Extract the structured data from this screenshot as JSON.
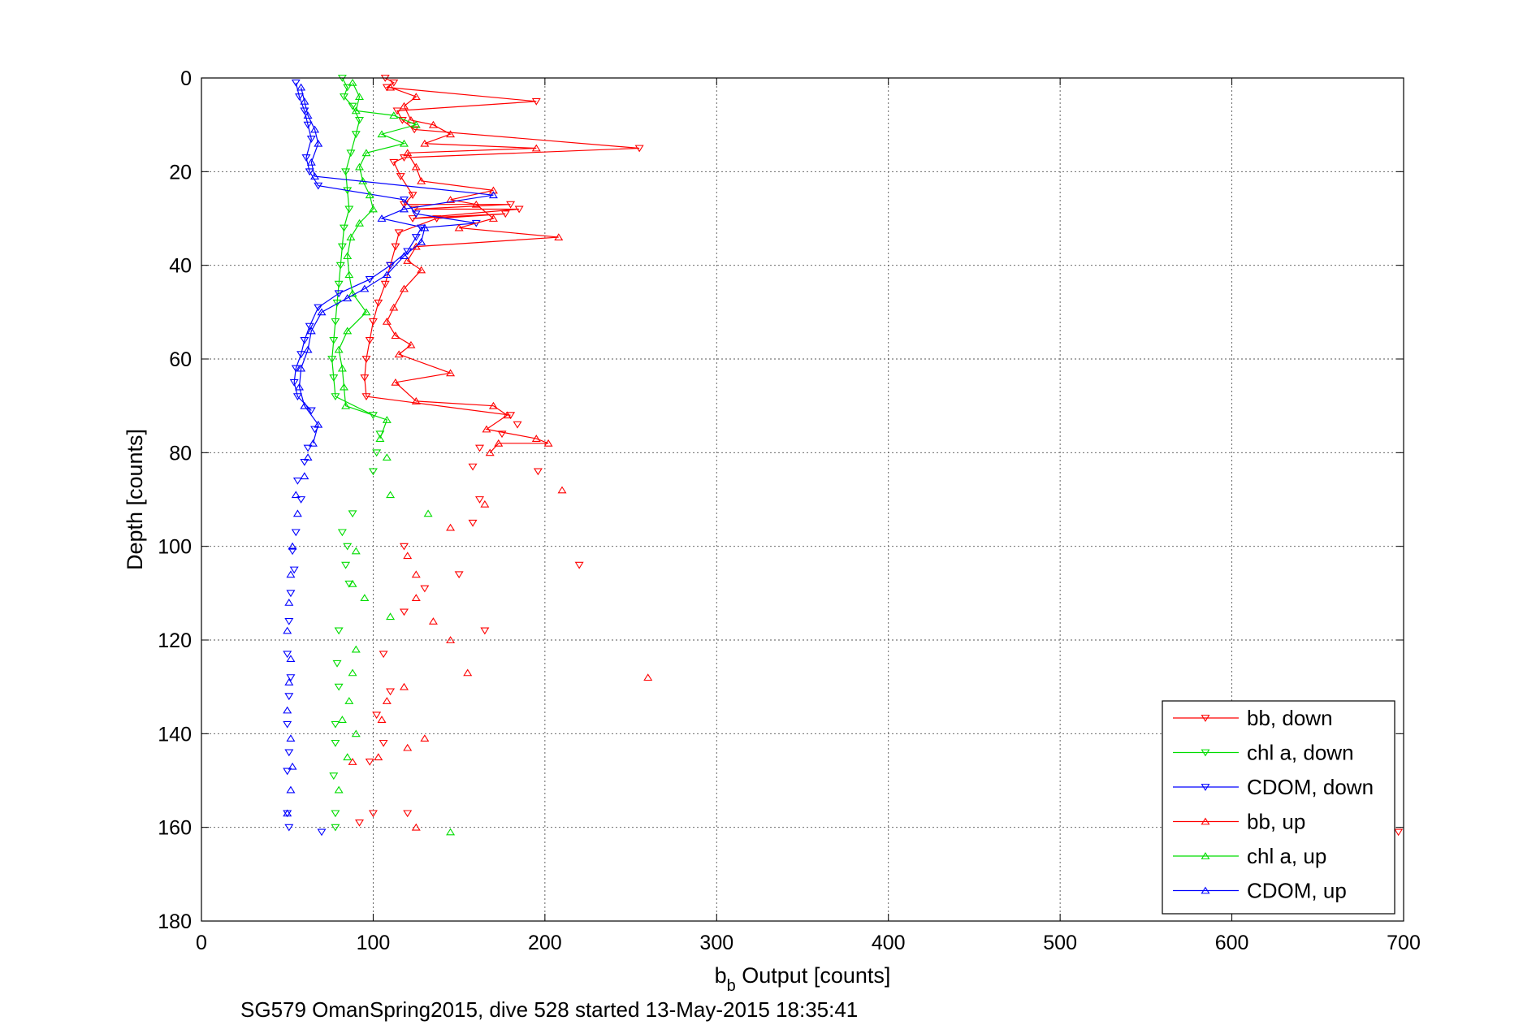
{
  "chart_data": {
    "type": "scatter",
    "xlabel": {
      "base": "b",
      "sub": "b",
      "rest": " Output [counts]"
    },
    "ylabel": "Depth [counts]",
    "caption": "SG579 OmanSpring2015, dive 528 started 13-May-2015 18:35:41",
    "xlim": [
      0,
      700
    ],
    "ylim": [
      0,
      180
    ],
    "y_reversed": true,
    "grid": true,
    "xticks": [
      "0",
      "100",
      "200",
      "300",
      "400",
      "500",
      "600",
      "700"
    ],
    "yticks": [
      "0",
      "20",
      "40",
      "60",
      "80",
      "100",
      "120",
      "140",
      "160",
      "180"
    ],
    "legend_position": "bottom-right",
    "series": [
      {
        "name": "bb, down",
        "color": "#ff0000",
        "marker": "triangle-down",
        "points": [
          [
            107,
            0
          ],
          [
            112,
            1
          ],
          [
            108,
            2
          ],
          [
            195,
            5
          ],
          [
            114,
            7
          ],
          [
            117,
            9
          ],
          [
            124,
            11
          ],
          [
            255,
            15
          ],
          [
            118,
            17
          ],
          [
            112,
            18
          ],
          [
            116,
            21
          ],
          [
            123,
            25
          ],
          [
            118,
            27
          ],
          [
            180,
            27
          ],
          [
            124,
            28
          ],
          [
            185,
            28
          ],
          [
            123,
            30
          ],
          [
            177,
            29
          ],
          [
            137,
            30
          ],
          [
            115,
            33
          ],
          [
            113,
            36
          ],
          [
            110,
            40
          ],
          [
            107,
            44
          ],
          [
            103,
            48
          ],
          [
            100,
            52
          ],
          [
            98,
            56
          ],
          [
            96,
            60
          ],
          [
            95,
            64
          ],
          [
            96,
            68
          ],
          [
            180,
            72
          ],
          [
            184,
            74
          ],
          [
            175,
            76
          ],
          [
            162,
            79
          ],
          [
            158,
            83
          ],
          [
            196,
            84
          ],
          [
            162,
            90
          ],
          [
            158,
            95
          ],
          [
            118,
            100
          ],
          [
            220,
            104
          ],
          [
            150,
            106
          ],
          [
            130,
            109
          ],
          [
            118,
            114
          ],
          [
            165,
            118
          ],
          [
            106,
            123
          ],
          [
            110,
            131
          ],
          [
            102,
            136
          ],
          [
            106,
            142
          ],
          [
            98,
            146
          ],
          [
            100,
            157
          ],
          [
            120,
            157
          ],
          [
            92,
            159
          ],
          [
            697,
            161
          ]
        ]
      },
      {
        "name": "chl a, down",
        "color": "#00dd00",
        "marker": "triangle-down",
        "points": [
          [
            82,
            0
          ],
          [
            85,
            2
          ],
          [
            83,
            4
          ],
          [
            88,
            6
          ],
          [
            92,
            9
          ],
          [
            90,
            12
          ],
          [
            87,
            16
          ],
          [
            84,
            20
          ],
          [
            85,
            24
          ],
          [
            86,
            28
          ],
          [
            83,
            32
          ],
          [
            82,
            36
          ],
          [
            81,
            40
          ],
          [
            80,
            44
          ],
          [
            79,
            48
          ],
          [
            78,
            52
          ],
          [
            77,
            56
          ],
          [
            76,
            60
          ],
          [
            77,
            64
          ],
          [
            78,
            68
          ],
          [
            100,
            72
          ],
          [
            104,
            76
          ],
          [
            102,
            80
          ],
          [
            100,
            84
          ],
          [
            88,
            93
          ],
          [
            82,
            97
          ],
          [
            85,
            100
          ],
          [
            84,
            104
          ],
          [
            86,
            108
          ],
          [
            80,
            118
          ],
          [
            79,
            125
          ],
          [
            80,
            130
          ],
          [
            78,
            138
          ],
          [
            78,
            142
          ],
          [
            77,
            149
          ],
          [
            78,
            157
          ],
          [
            78,
            160
          ]
        ]
      },
      {
        "name": "CDOM, down",
        "color": "#0000ff",
        "marker": "triangle-down",
        "points": [
          [
            55,
            1
          ],
          [
            57,
            4
          ],
          [
            60,
            7
          ],
          [
            62,
            10
          ],
          [
            64,
            13
          ],
          [
            61,
            17
          ],
          [
            63,
            20
          ],
          [
            68,
            23
          ],
          [
            118,
            26
          ],
          [
            125,
            29
          ],
          [
            160,
            31
          ],
          [
            128,
            32
          ],
          [
            125,
            34
          ],
          [
            120,
            37
          ],
          [
            110,
            40
          ],
          [
            98,
            43
          ],
          [
            80,
            46
          ],
          [
            68,
            49
          ],
          [
            63,
            53
          ],
          [
            60,
            56
          ],
          [
            58,
            59
          ],
          [
            55,
            62
          ],
          [
            54,
            65
          ],
          [
            56,
            68
          ],
          [
            64,
            71
          ],
          [
            66,
            75
          ],
          [
            62,
            79
          ],
          [
            60,
            82
          ],
          [
            56,
            86
          ],
          [
            58,
            90
          ],
          [
            55,
            97
          ],
          [
            53,
            101
          ],
          [
            54,
            105
          ],
          [
            52,
            110
          ],
          [
            51,
            116
          ],
          [
            50,
            123
          ],
          [
            52,
            128
          ],
          [
            51,
            132
          ],
          [
            50,
            138
          ],
          [
            51,
            144
          ],
          [
            50,
            148
          ],
          [
            50,
            157
          ],
          [
            51,
            160
          ],
          [
            70,
            161
          ]
        ]
      },
      {
        "name": "bb, up",
        "color": "#ff0000",
        "marker": "triangle-up",
        "points": [
          [
            110,
            2
          ],
          [
            125,
            4
          ],
          [
            118,
            6
          ],
          [
            122,
            9
          ],
          [
            135,
            10
          ],
          [
            145,
            12
          ],
          [
            130,
            14
          ],
          [
            195,
            15
          ],
          [
            120,
            16
          ],
          [
            125,
            19
          ],
          [
            128,
            22
          ],
          [
            170,
            24
          ],
          [
            145,
            26
          ],
          [
            160,
            27
          ],
          [
            170,
            30
          ],
          [
            150,
            32
          ],
          [
            208,
            34
          ],
          [
            125,
            36
          ],
          [
            120,
            39
          ],
          [
            128,
            41
          ],
          [
            118,
            45
          ],
          [
            112,
            49
          ],
          [
            108,
            52
          ],
          [
            113,
            55
          ],
          [
            122,
            57
          ],
          [
            115,
            59
          ],
          [
            145,
            63
          ],
          [
            113,
            65
          ],
          [
            125,
            69
          ],
          [
            170,
            70
          ],
          [
            178,
            72
          ],
          [
            166,
            75
          ],
          [
            195,
            77
          ],
          [
            202,
            78
          ],
          [
            173,
            78
          ],
          [
            168,
            80
          ],
          [
            210,
            88
          ],
          [
            165,
            91
          ],
          [
            145,
            96
          ],
          [
            120,
            102
          ],
          [
            125,
            106
          ],
          [
            125,
            111
          ],
          [
            135,
            116
          ],
          [
            145,
            120
          ],
          [
            155,
            127
          ],
          [
            260,
            128
          ],
          [
            118,
            130
          ],
          [
            108,
            133
          ],
          [
            105,
            137
          ],
          [
            130,
            141
          ],
          [
            120,
            143
          ],
          [
            103,
            145
          ],
          [
            88,
            146
          ],
          [
            125,
            160
          ]
        ]
      },
      {
        "name": "chl a, up",
        "color": "#00dd00",
        "marker": "triangle-up",
        "points": [
          [
            88,
            1
          ],
          [
            92,
            4
          ],
          [
            90,
            7
          ],
          [
            112,
            8
          ],
          [
            125,
            10
          ],
          [
            105,
            12
          ],
          [
            118,
            14
          ],
          [
            96,
            16
          ],
          [
            92,
            19
          ],
          [
            94,
            22
          ],
          [
            98,
            25
          ],
          [
            100,
            28
          ],
          [
            92,
            31
          ],
          [
            87,
            34
          ],
          [
            85,
            38
          ],
          [
            86,
            42
          ],
          [
            88,
            46
          ],
          [
            96,
            50
          ],
          [
            85,
            54
          ],
          [
            80,
            58
          ],
          [
            82,
            62
          ],
          [
            83,
            66
          ],
          [
            84,
            70
          ],
          [
            108,
            73
          ],
          [
            104,
            77
          ],
          [
            108,
            81
          ],
          [
            110,
            89
          ],
          [
            132,
            93
          ],
          [
            90,
            101
          ],
          [
            88,
            108
          ],
          [
            95,
            111
          ],
          [
            110,
            115
          ],
          [
            90,
            122
          ],
          [
            88,
            127
          ],
          [
            86,
            133
          ],
          [
            82,
            137
          ],
          [
            90,
            140
          ],
          [
            85,
            145
          ],
          [
            80,
            152
          ],
          [
            145,
            161
          ]
        ]
      },
      {
        "name": "CDOM, up",
        "color": "#0000ff",
        "marker": "triangle-up",
        "points": [
          [
            58,
            2
          ],
          [
            60,
            5
          ],
          [
            62,
            8
          ],
          [
            66,
            11
          ],
          [
            68,
            14
          ],
          [
            64,
            18
          ],
          [
            66,
            21
          ],
          [
            170,
            25
          ],
          [
            118,
            28
          ],
          [
            105,
            30
          ],
          [
            130,
            32
          ],
          [
            128,
            35
          ],
          [
            118,
            38
          ],
          [
            108,
            42
          ],
          [
            95,
            45
          ],
          [
            85,
            47
          ],
          [
            70,
            50
          ],
          [
            64,
            54
          ],
          [
            62,
            58
          ],
          [
            58,
            62
          ],
          [
            57,
            66
          ],
          [
            60,
            70
          ],
          [
            68,
            74
          ],
          [
            65,
            78
          ],
          [
            62,
            81
          ],
          [
            60,
            85
          ],
          [
            55,
            89
          ],
          [
            56,
            93
          ],
          [
            53,
            100
          ],
          [
            52,
            106
          ],
          [
            51,
            112
          ],
          [
            50,
            118
          ],
          [
            52,
            124
          ],
          [
            51,
            129
          ],
          [
            50,
            135
          ],
          [
            52,
            141
          ],
          [
            53,
            147
          ],
          [
            52,
            152
          ],
          [
            50,
            157
          ]
        ]
      }
    ]
  }
}
